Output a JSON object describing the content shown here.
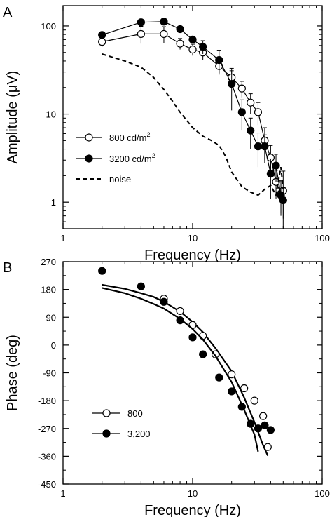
{
  "chart_data": [
    {
      "panel": "A",
      "type": "line",
      "xlabel": "Frequency (Hz)",
      "ylabel": "Amplitude (μV)",
      "x_scale": "log",
      "y_scale": "log",
      "xlim": [
        1,
        100
      ],
      "ylim": [
        0.5,
        170
      ],
      "x_ticks": [
        1,
        10,
        100
      ],
      "x_tick_labels": [
        "1",
        "10",
        "100"
      ],
      "y_ticks": [
        1,
        10,
        100
      ],
      "y_tick_labels": [
        "1",
        "10",
        "100"
      ],
      "grid": false,
      "legend_position": "bottom-left",
      "series": [
        {
          "name": "800 cd/m²",
          "legend": {
            "main": "800 cd/m",
            "sup": "2"
          },
          "marker": "open-circle",
          "color": "#000000",
          "x": [
            2,
            4,
            6,
            8,
            10,
            12,
            16,
            20,
            24,
            28,
            32,
            36,
            40,
            44,
            48,
            50
          ],
          "y": [
            66,
            81,
            81,
            63,
            54,
            50,
            35,
            26,
            19.5,
            13.5,
            10.5,
            5,
            3.2,
            1.7,
            1.25,
            1.35
          ],
          "err": [
            8,
            18,
            17,
            9,
            8,
            9,
            7,
            5,
            4,
            3.5,
            3,
            2,
            1.2,
            0.6,
            0.5,
            0.9
          ]
        },
        {
          "name": "3200 cd/m²",
          "legend": {
            "main": "3200 cd/m",
            "sup": "2"
          },
          "marker": "filled-circle",
          "color": "#000000",
          "x": [
            2,
            4,
            6,
            8,
            10,
            12,
            16,
            20,
            24,
            28,
            32,
            36,
            40,
            44,
            48,
            50
          ],
          "y": [
            79,
            110,
            112,
            92,
            70,
            58,
            41,
            22,
            10.5,
            6.5,
            4.3,
            4.3,
            2.1,
            2.6,
            1.2,
            1.05
          ],
          "err": [
            0,
            0,
            0,
            0,
            0,
            10,
            12,
            11,
            4,
            2.5,
            1.8,
            1.5,
            1,
            0.9,
            0.5,
            0.4
          ]
        },
        {
          "name": "noise",
          "legend": {
            "main": "noise",
            "sup": ""
          },
          "marker": "none",
          "line": "dashed",
          "color": "#000000",
          "x": [
            2,
            3,
            4,
            5,
            6,
            7,
            8,
            10,
            12,
            14,
            16,
            18,
            20,
            24,
            28,
            30,
            32,
            36,
            40,
            44,
            48,
            50
          ],
          "y": [
            48,
            40,
            34,
            26,
            19,
            14,
            10.5,
            7,
            5.6,
            5,
            4.4,
            3.3,
            2.2,
            1.5,
            1.3,
            1.25,
            1.2,
            1.4,
            1.55,
            1.2,
            2.5,
            1.4
          ]
        }
      ]
    },
    {
      "panel": "B",
      "type": "scatter",
      "xlabel": "Frequency (Hz)",
      "ylabel": "Phase (deg)",
      "x_scale": "log",
      "y_scale": "linear",
      "xlim": [
        1,
        100
      ],
      "ylim": [
        -450,
        270
      ],
      "x_ticks": [
        1,
        10,
        100
      ],
      "x_tick_labels": [
        "1",
        "10",
        "100"
      ],
      "y_ticks": [
        270,
        180,
        90,
        0,
        -90,
        -180,
        -270,
        -360,
        -450
      ],
      "y_tick_labels": [
        "270",
        "180",
        "90",
        "0",
        "-90",
        "-180",
        "-270",
        "-360",
        "-450"
      ],
      "grid": false,
      "legend_position": "bottom-left",
      "series": [
        {
          "name": "800",
          "marker": "open-circle",
          "x": [
            6,
            8,
            10,
            12,
            15,
            20,
            25,
            30,
            35,
            38
          ],
          "y": [
            150,
            110,
            65,
            30,
            -30,
            -95,
            -140,
            -180,
            -230,
            -330
          ],
          "fit": {
            "x": [
              2,
              3,
              4,
              5,
              6,
              8,
              10,
              12,
              15,
              20,
              25,
              30,
              35,
              38
            ],
            "y": [
              195,
              182,
              168,
              156,
              140,
              108,
              75,
              42,
              -10,
              -85,
              -170,
              -250,
              -325,
              -358
            ]
          }
        },
        {
          "name": "3,200",
          "marker": "filled-circle",
          "x": [
            2,
            4,
            6,
            8,
            10,
            12,
            16,
            20,
            24,
            28,
            32,
            36,
            40
          ],
          "y": [
            240,
            190,
            140,
            80,
            25,
            -30,
            -105,
            -150,
            -200,
            -255,
            -270,
            -260,
            -275
          ],
          "fit": {
            "x": [
              2,
              3,
              4,
              5,
              6,
              8,
              10,
              12,
              15,
              20,
              25,
              30,
              32
            ],
            "y": [
              185,
              168,
              150,
              133,
              118,
              85,
              52,
              18,
              -35,
              -120,
              -210,
              -290,
              -345
            ]
          }
        }
      ]
    }
  ]
}
